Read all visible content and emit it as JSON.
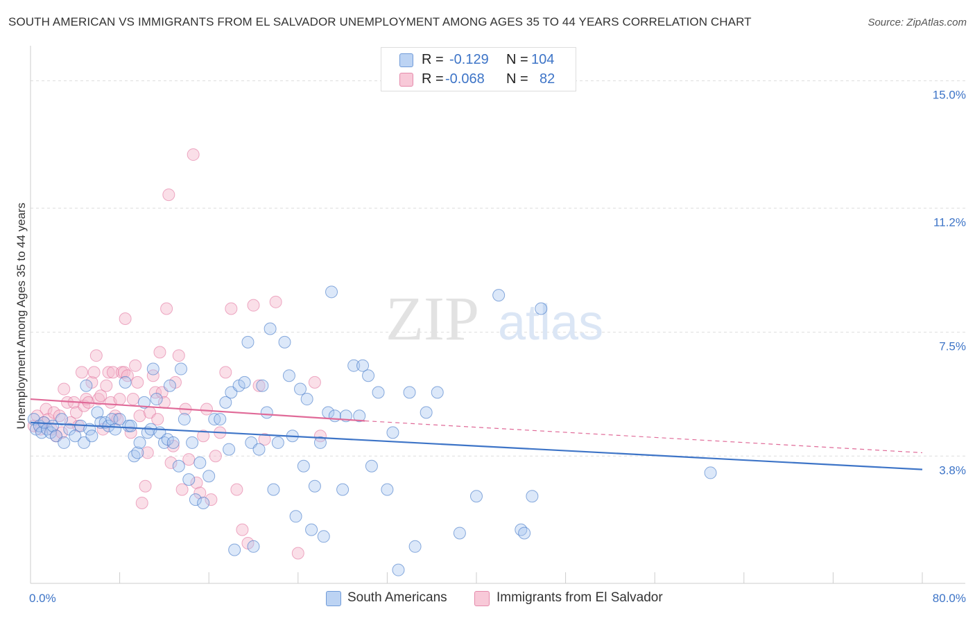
{
  "title": "SOUTH AMERICAN VS IMMIGRANTS FROM EL SALVADOR UNEMPLOYMENT AMONG AGES 35 TO 44 YEARS CORRELATION CHART",
  "source": "Source: ZipAtlas.com",
  "watermark": {
    "zip": "ZIP",
    "atlas": "atlas"
  },
  "legend_top": {
    "rows": [
      {
        "r_label": "R =",
        "r_value": "-0.129",
        "n_label": "N =",
        "n_value": "104"
      },
      {
        "r_label": "R =",
        "r_value": "-0.068",
        "n_label": "N =",
        "n_value": "82"
      }
    ]
  },
  "colors": {
    "blue": "#3d74c7",
    "blue_fill": "#a8c6f0",
    "pink": "#e06a98",
    "pink_fill": "#f5b7cc",
    "axis_text": "#3d74c7",
    "grid": "#dddddd"
  },
  "chart_data": {
    "type": "scatter",
    "title": "SOUTH AMERICAN VS IMMIGRANTS FROM EL SALVADOR UNEMPLOYMENT AMONG AGES 35 TO 44 YEARS CORRELATION CHART",
    "xlabel": "",
    "ylabel": "Unemployment Among Ages 35 to 44 years",
    "xlim": [
      0,
      80
    ],
    "ylim": [
      0,
      15.8
    ],
    "x_tick_labels": [
      "0.0%",
      "80.0%"
    ],
    "y_ticks": [
      3.8,
      7.5,
      11.2,
      15.0
    ],
    "y_tick_labels": [
      "3.8%",
      "7.5%",
      "11.2%",
      "15.0%"
    ],
    "grid": true,
    "legend_position": "top-center",
    "series": [
      {
        "name": "South Americans",
        "r": -0.129,
        "n": 104,
        "trend": {
          "x": [
            0,
            80
          ],
          "y": [
            4.8,
            3.4
          ]
        },
        "points": [
          [
            0.3,
            4.9
          ],
          [
            0.5,
            4.6
          ],
          [
            0.8,
            4.7
          ],
          [
            1.0,
            4.5
          ],
          [
            1.2,
            4.8
          ],
          [
            1.5,
            4.6
          ],
          [
            1.8,
            4.5
          ],
          [
            2.0,
            4.7
          ],
          [
            2.3,
            4.4
          ],
          [
            2.8,
            4.9
          ],
          [
            3.0,
            4.2
          ],
          [
            3.5,
            4.6
          ],
          [
            4.0,
            4.4
          ],
          [
            4.5,
            4.7
          ],
          [
            4.8,
            4.2
          ],
          [
            5.0,
            5.9
          ],
          [
            5.3,
            4.6
          ],
          [
            5.5,
            4.4
          ],
          [
            6.0,
            5.1
          ],
          [
            6.3,
            4.8
          ],
          [
            6.7,
            4.8
          ],
          [
            7.0,
            4.7
          ],
          [
            7.3,
            4.9
          ],
          [
            7.6,
            4.6
          ],
          [
            8.0,
            4.9
          ],
          [
            8.5,
            6.0
          ],
          [
            8.8,
            4.7
          ],
          [
            9.0,
            4.7
          ],
          [
            9.3,
            3.8
          ],
          [
            9.6,
            3.9
          ],
          [
            9.8,
            4.2
          ],
          [
            10.2,
            5.4
          ],
          [
            10.5,
            4.5
          ],
          [
            10.8,
            4.6
          ],
          [
            11.0,
            6.4
          ],
          [
            11.3,
            5.5
          ],
          [
            11.6,
            4.5
          ],
          [
            12.0,
            4.2
          ],
          [
            12.3,
            4.3
          ],
          [
            12.5,
            5.9
          ],
          [
            12.8,
            4.2
          ],
          [
            13.3,
            3.5
          ],
          [
            13.5,
            6.4
          ],
          [
            13.8,
            4.9
          ],
          [
            14.2,
            3.1
          ],
          [
            14.5,
            4.2
          ],
          [
            14.8,
            2.5
          ],
          [
            15.2,
            3.6
          ],
          [
            15.5,
            2.4
          ],
          [
            16.0,
            3.2
          ],
          [
            16.5,
            4.9
          ],
          [
            17.0,
            4.9
          ],
          [
            17.5,
            5.4
          ],
          [
            17.8,
            4.0
          ],
          [
            18.0,
            5.7
          ],
          [
            18.3,
            1.0
          ],
          [
            18.7,
            5.9
          ],
          [
            19.2,
            6.0
          ],
          [
            19.5,
            7.2
          ],
          [
            19.8,
            4.2
          ],
          [
            20.0,
            1.1
          ],
          [
            20.5,
            4.0
          ],
          [
            20.8,
            5.9
          ],
          [
            21.2,
            5.1
          ],
          [
            21.5,
            7.6
          ],
          [
            21.8,
            2.8
          ],
          [
            22.2,
            4.2
          ],
          [
            22.8,
            7.2
          ],
          [
            23.2,
            6.2
          ],
          [
            23.5,
            4.4
          ],
          [
            23.8,
            2.0
          ],
          [
            24.2,
            5.8
          ],
          [
            24.5,
            3.5
          ],
          [
            24.8,
            5.5
          ],
          [
            25.2,
            1.6
          ],
          [
            25.5,
            2.9
          ],
          [
            26.0,
            4.2
          ],
          [
            26.3,
            1.4
          ],
          [
            26.7,
            5.1
          ],
          [
            27.0,
            8.7
          ],
          [
            27.3,
            5.0
          ],
          [
            28.0,
            2.8
          ],
          [
            28.3,
            5.0
          ],
          [
            29.0,
            6.5
          ],
          [
            29.5,
            5.0
          ],
          [
            29.8,
            6.5
          ],
          [
            30.3,
            6.2
          ],
          [
            30.6,
            3.5
          ],
          [
            31.2,
            5.7
          ],
          [
            32.0,
            2.8
          ],
          [
            32.5,
            4.5
          ],
          [
            33.0,
            0.4
          ],
          [
            34.0,
            5.7
          ],
          [
            34.5,
            1.1
          ],
          [
            35.5,
            5.1
          ],
          [
            36.5,
            5.7
          ],
          [
            38.5,
            1.5
          ],
          [
            40.0,
            2.6
          ],
          [
            42.0,
            8.6
          ],
          [
            44.0,
            1.6
          ],
          [
            44.3,
            1.5
          ],
          [
            45.0,
            2.6
          ],
          [
            45.8,
            8.2
          ],
          [
            61.0,
            3.3
          ]
        ]
      },
      {
        "name": "Immigrants from El Salvador",
        "r": -0.068,
        "n": 82,
        "trend": {
          "x": [
            0,
            30
          ],
          "y": [
            5.5,
            4.85
          ]
        },
        "trend_dashed": {
          "x": [
            30,
            80
          ],
          "y": [
            4.85,
            3.9
          ]
        },
        "points": [
          [
            0.3,
            4.7
          ],
          [
            0.6,
            5.0
          ],
          [
            0.9,
            4.6
          ],
          [
            1.2,
            4.8
          ],
          [
            1.4,
            5.2
          ],
          [
            1.6,
            4.9
          ],
          [
            1.9,
            4.6
          ],
          [
            2.1,
            5.1
          ],
          [
            2.3,
            4.4
          ],
          [
            2.6,
            5.0
          ],
          [
            2.8,
            4.5
          ],
          [
            3.0,
            5.8
          ],
          [
            3.3,
            5.4
          ],
          [
            3.6,
            4.8
          ],
          [
            3.9,
            5.4
          ],
          [
            4.1,
            5.1
          ],
          [
            4.3,
            4.7
          ],
          [
            4.6,
            6.3
          ],
          [
            4.8,
            5.3
          ],
          [
            5.0,
            5.5
          ],
          [
            5.2,
            5.4
          ],
          [
            5.5,
            6.0
          ],
          [
            5.7,
            6.3
          ],
          [
            5.9,
            6.8
          ],
          [
            6.1,
            5.5
          ],
          [
            6.3,
            5.6
          ],
          [
            6.5,
            4.6
          ],
          [
            6.8,
            5.9
          ],
          [
            7.0,
            6.3
          ],
          [
            7.2,
            5.4
          ],
          [
            7.4,
            6.3
          ],
          [
            7.6,
            5.0
          ],
          [
            7.8,
            4.9
          ],
          [
            8.0,
            5.5
          ],
          [
            8.2,
            6.3
          ],
          [
            8.4,
            6.3
          ],
          [
            8.5,
            7.9
          ],
          [
            8.7,
            6.2
          ],
          [
            9.0,
            4.5
          ],
          [
            9.2,
            5.5
          ],
          [
            9.4,
            6.5
          ],
          [
            9.6,
            6.0
          ],
          [
            9.8,
            5.0
          ],
          [
            10.0,
            2.4
          ],
          [
            10.3,
            2.9
          ],
          [
            10.5,
            3.9
          ],
          [
            10.7,
            5.1
          ],
          [
            11.0,
            6.2
          ],
          [
            11.2,
            5.7
          ],
          [
            11.4,
            4.9
          ],
          [
            11.6,
            6.9
          ],
          [
            11.8,
            5.7
          ],
          [
            12.0,
            5.4
          ],
          [
            12.2,
            8.2
          ],
          [
            12.4,
            11.6
          ],
          [
            12.6,
            3.6
          ],
          [
            12.8,
            4.1
          ],
          [
            13.0,
            6.0
          ],
          [
            13.3,
            6.8
          ],
          [
            13.6,
            2.8
          ],
          [
            13.9,
            5.2
          ],
          [
            14.2,
            3.7
          ],
          [
            14.6,
            12.8
          ],
          [
            14.9,
            3.0
          ],
          [
            15.2,
            2.7
          ],
          [
            15.5,
            4.4
          ],
          [
            15.8,
            5.2
          ],
          [
            16.2,
            2.5
          ],
          [
            16.6,
            3.8
          ],
          [
            17.0,
            4.5
          ],
          [
            17.5,
            6.3
          ],
          [
            18.0,
            8.2
          ],
          [
            18.5,
            2.8
          ],
          [
            19.0,
            1.6
          ],
          [
            19.5,
            1.2
          ],
          [
            20.0,
            8.3
          ],
          [
            20.5,
            5.9
          ],
          [
            21.0,
            4.3
          ],
          [
            22.0,
            8.4
          ],
          [
            24.0,
            0.9
          ],
          [
            25.5,
            6.0
          ],
          [
            26.0,
            4.4
          ]
        ]
      }
    ]
  },
  "legend_bottom": {
    "items": [
      "South Americans",
      "Immigrants from El Salvador"
    ]
  }
}
